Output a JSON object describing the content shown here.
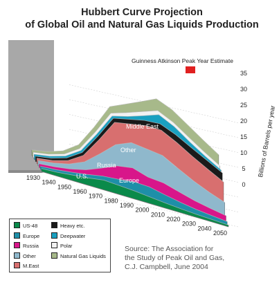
{
  "title_line1": "Hubbert Curve Projection",
  "title_line2": "of Global Oil and Natural Gas Liquids Production",
  "peak_label": "Guinness Atkinson Peak Year Estimate",
  "source": {
    "line1": "Source: The Association for",
    "line2": "the Study of Peak Oil and Gas,",
    "line3": "C.J. Campbell, June 2004"
  },
  "inline_labels": {
    "us": "U.S.",
    "europe": "Europe",
    "russia": "Russia",
    "other": "Other",
    "meast": "Middle East"
  },
  "legend": [
    {
      "label": "US-48",
      "color": "#0a8a4a"
    },
    {
      "label": "Europe",
      "color": "#1e8fa8"
    },
    {
      "label": "Russia",
      "color": "#d8168a"
    },
    {
      "label": "Other",
      "color": "#8fb8cc"
    },
    {
      "label": "M.East",
      "color": "#d86f6f"
    },
    {
      "label": "Heavy etc.",
      "color": "#1a1a1a"
    },
    {
      "label": "Deepwater",
      "color": "#1aa0c0"
    },
    {
      "label": "Polar",
      "color": "#f2f2f2"
    },
    {
      "label": "Natural Gas Liquids",
      "color": "#a7b98a"
    }
  ],
  "chart_data": {
    "type": "area",
    "style": "3d-ribbon-stacked",
    "title": "Hubbert Curve Projection of Global Oil and Natural Gas Liquids Production",
    "ylabel": "Billions of Barrels per year",
    "ylim": [
      0,
      35
    ],
    "yticks": [
      0,
      5,
      10,
      15,
      20,
      25,
      30,
      35
    ],
    "xlim": [
      1930,
      2050
    ],
    "xticks": [
      1930,
      1940,
      1950,
      1960,
      1970,
      1980,
      1990,
      2000,
      2010,
      2020,
      2030,
      2040,
      2050
    ],
    "legend_position": "bottom-left",
    "series": [
      {
        "name": "US-48",
        "color": "#0a8a4a",
        "x": [
          1930,
          1940,
          1950,
          1960,
          1970,
          1980,
          1990,
          2000,
          2010,
          2020,
          2030,
          2040,
          2050
        ],
        "values": [
          1.0,
          1.3,
          1.9,
          2.5,
          3.3,
          3.0,
          2.7,
          2.2,
          1.7,
          1.3,
          1.0,
          0.8,
          0.6
        ]
      },
      {
        "name": "Europe",
        "color": "#1e8fa8",
        "x": [
          1930,
          1940,
          1950,
          1960,
          1970,
          1980,
          1990,
          2000,
          2010,
          2020,
          2030,
          2040,
          2050
        ],
        "values": [
          0.1,
          0.2,
          0.3,
          0.5,
          0.7,
          1.5,
          2.5,
          2.8,
          2.2,
          1.6,
          1.1,
          0.8,
          0.5
        ]
      },
      {
        "name": "Russia",
        "color": "#d8168a",
        "x": [
          1930,
          1940,
          1950,
          1960,
          1970,
          1980,
          1990,
          2000,
          2010,
          2020,
          2030,
          2040,
          2050
        ],
        "values": [
          0.2,
          0.3,
          0.4,
          0.9,
          2.0,
          3.8,
          4.0,
          2.6,
          3.3,
          2.8,
          2.2,
          1.7,
          1.3
        ]
      },
      {
        "name": "Other",
        "color": "#8fb8cc",
        "x": [
          1930,
          1940,
          1950,
          1960,
          1970,
          1980,
          1990,
          2000,
          2010,
          2020,
          2030,
          2040,
          2050
        ],
        "values": [
          0.4,
          0.6,
          1.0,
          2.0,
          4.2,
          6.5,
          7.8,
          8.8,
          8.6,
          7.3,
          6.0,
          4.8,
          3.8
        ]
      },
      {
        "name": "M.East",
        "color": "#d86f6f",
        "x": [
          1930,
          1940,
          1950,
          1960,
          1970,
          1980,
          1990,
          2000,
          2010,
          2020,
          2030,
          2040,
          2050
        ],
        "values": [
          0.1,
          0.2,
          0.5,
          1.5,
          4.0,
          6.8,
          5.6,
          7.2,
          7.8,
          8.0,
          7.6,
          7.0,
          6.2
        ]
      },
      {
        "name": "Heavy etc.",
        "color": "#1a1a1a",
        "x": [
          1930,
          1940,
          1950,
          1960,
          1970,
          1980,
          1990,
          2000,
          2010,
          2020,
          2030,
          2040,
          2050
        ],
        "values": [
          0.0,
          0.1,
          0.2,
          0.3,
          0.5,
          0.7,
          0.9,
          1.1,
          1.5,
          2.0,
          2.3,
          2.4,
          2.4
        ]
      },
      {
        "name": "Deepwater",
        "color": "#1aa0c0",
        "x": [
          1930,
          1940,
          1950,
          1960,
          1970,
          1980,
          1990,
          2000,
          2010,
          2020,
          2030,
          2040,
          2050
        ],
        "values": [
          0.0,
          0.0,
          0.0,
          0.0,
          0.0,
          0.1,
          0.3,
          0.9,
          2.4,
          2.0,
          1.2,
          0.6,
          0.3
        ]
      },
      {
        "name": "Polar",
        "color": "#f2f2f2",
        "x": [
          1930,
          1940,
          1950,
          1960,
          1970,
          1980,
          1990,
          2000,
          2010,
          2020,
          2030,
          2040,
          2050
        ],
        "values": [
          0.0,
          0.0,
          0.0,
          0.0,
          0.1,
          0.3,
          0.6,
          0.7,
          0.7,
          0.8,
          0.9,
          0.8,
          0.7
        ]
      },
      {
        "name": "Natural Gas Liquids",
        "color": "#a7b98a",
        "x": [
          1930,
          1940,
          1950,
          1960,
          1970,
          1980,
          1990,
          2000,
          2010,
          2020,
          2030,
          2040,
          2050
        ],
        "values": [
          0.1,
          0.2,
          0.4,
          0.6,
          1.0,
          1.5,
          2.2,
          2.7,
          3.3,
          3.6,
          3.6,
          3.4,
          3.1
        ]
      }
    ]
  }
}
